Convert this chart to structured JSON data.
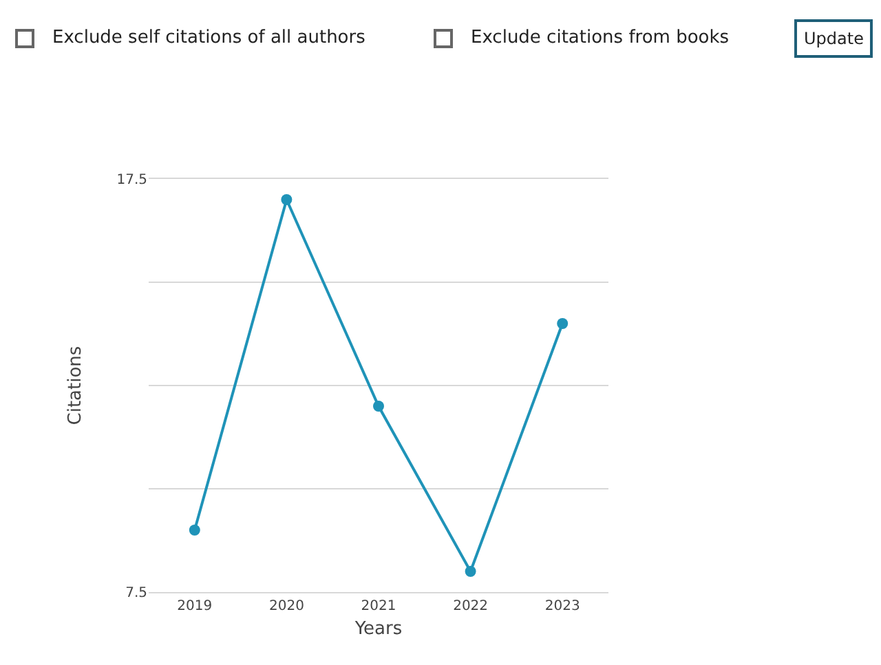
{
  "chart_data": {
    "type": "line",
    "xlabel": "Years",
    "ylabel": "Citations",
    "categories": [
      "2019",
      "2020",
      "2021",
      "2022",
      "2023"
    ],
    "series": [
      {
        "color": "#1f93b8",
        "values": [
          9,
          17,
          12,
          8,
          14
        ]
      }
    ],
    "ylim": [
      7.5,
      17.5
    ],
    "yticks": [
      7.5,
      {
        "value": 10,
        "label": null
      },
      {
        "value": 12.5,
        "label": null
      },
      {
        "value": 15,
        "label": null
      },
      17.5
    ],
    "grid": "y",
    "marker": "circle",
    "line_style": "solid",
    "annotations": [
      "Exclude self citations of all authors",
      "Exclude citations from books",
      "Update"
    ]
  }
}
